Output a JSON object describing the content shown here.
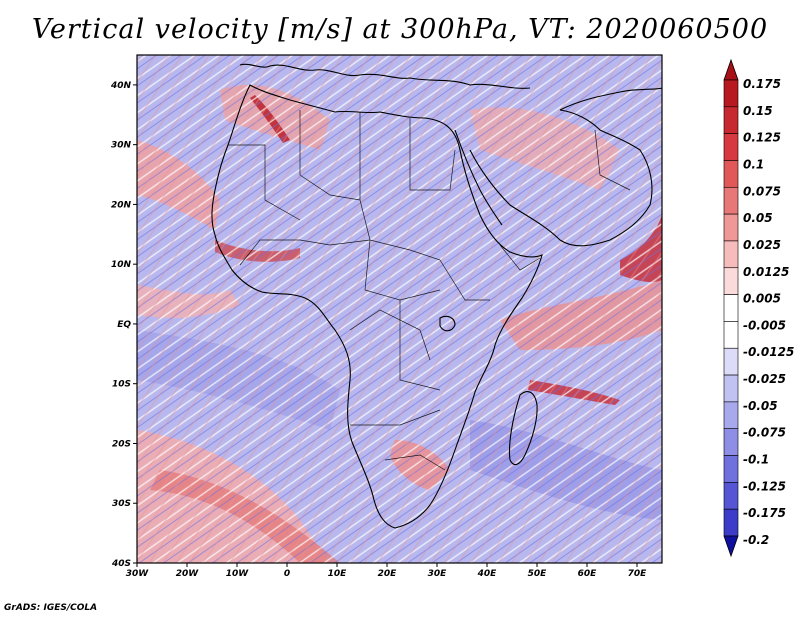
{
  "title": "Vertical velocity [m/s] at 300hPa, VT: 2020060500",
  "footer": "GrADS: IGES/COLA",
  "map": {
    "lon_range": [
      -30,
      75
    ],
    "lat_range": [
      -40,
      45
    ],
    "lat_ticks": [
      {
        "value": 40,
        "label": "40N"
      },
      {
        "value": 30,
        "label": "30N"
      },
      {
        "value": 20,
        "label": "20N"
      },
      {
        "value": 10,
        "label": "10N"
      },
      {
        "value": 0,
        "label": "EQ"
      },
      {
        "value": -10,
        "label": "10S"
      },
      {
        "value": -20,
        "label": "20S"
      },
      {
        "value": -30,
        "label": "30S"
      },
      {
        "value": -40,
        "label": "40S"
      }
    ],
    "lon_ticks": [
      {
        "value": -30,
        "label": "30W"
      },
      {
        "value": -20,
        "label": "20W"
      },
      {
        "value": -10,
        "label": "10W"
      },
      {
        "value": 0,
        "label": "0"
      },
      {
        "value": 10,
        "label": "10E"
      },
      {
        "value": 20,
        "label": "20E"
      },
      {
        "value": 30,
        "label": "30E"
      },
      {
        "value": 40,
        "label": "40E"
      },
      {
        "value": 50,
        "label": "50E"
      },
      {
        "value": 60,
        "label": "60E"
      },
      {
        "value": 70,
        "label": "70E"
      }
    ]
  },
  "colorbar": {
    "levels": [
      {
        "label": "0.175",
        "color": "#b81820"
      },
      {
        "label": "0.15",
        "color": "#c82830"
      },
      {
        "label": "0.125",
        "color": "#d83840"
      },
      {
        "label": "0.1",
        "color": "#e05858"
      },
      {
        "label": "0.075",
        "color": "#e87878"
      },
      {
        "label": "0.05",
        "color": "#f09898"
      },
      {
        "label": "0.025",
        "color": "#f6bcbc"
      },
      {
        "label": "0.0125",
        "color": "#fadada"
      },
      {
        "label": "0.005",
        "color": "#ffffff"
      },
      {
        "label": "-0.005",
        "color": "#ffffff"
      },
      {
        "label": "-0.0125",
        "color": "#dcdcf8"
      },
      {
        "label": "-0.025",
        "color": "#c2c2f2"
      },
      {
        "label": "-0.05",
        "color": "#a8a8ec"
      },
      {
        "label": "-0.075",
        "color": "#8e8ee6"
      },
      {
        "label": "-0.1",
        "color": "#7070de"
      },
      {
        "label": "-0.125",
        "color": "#5656d4"
      },
      {
        "label": "-0.175",
        "color": "#3c3cc8"
      },
      {
        "label": "-0.2",
        "color": "#2222b4"
      }
    ],
    "top_cap_color": "#a81018",
    "bottom_cap_color": "#1010a0"
  }
}
